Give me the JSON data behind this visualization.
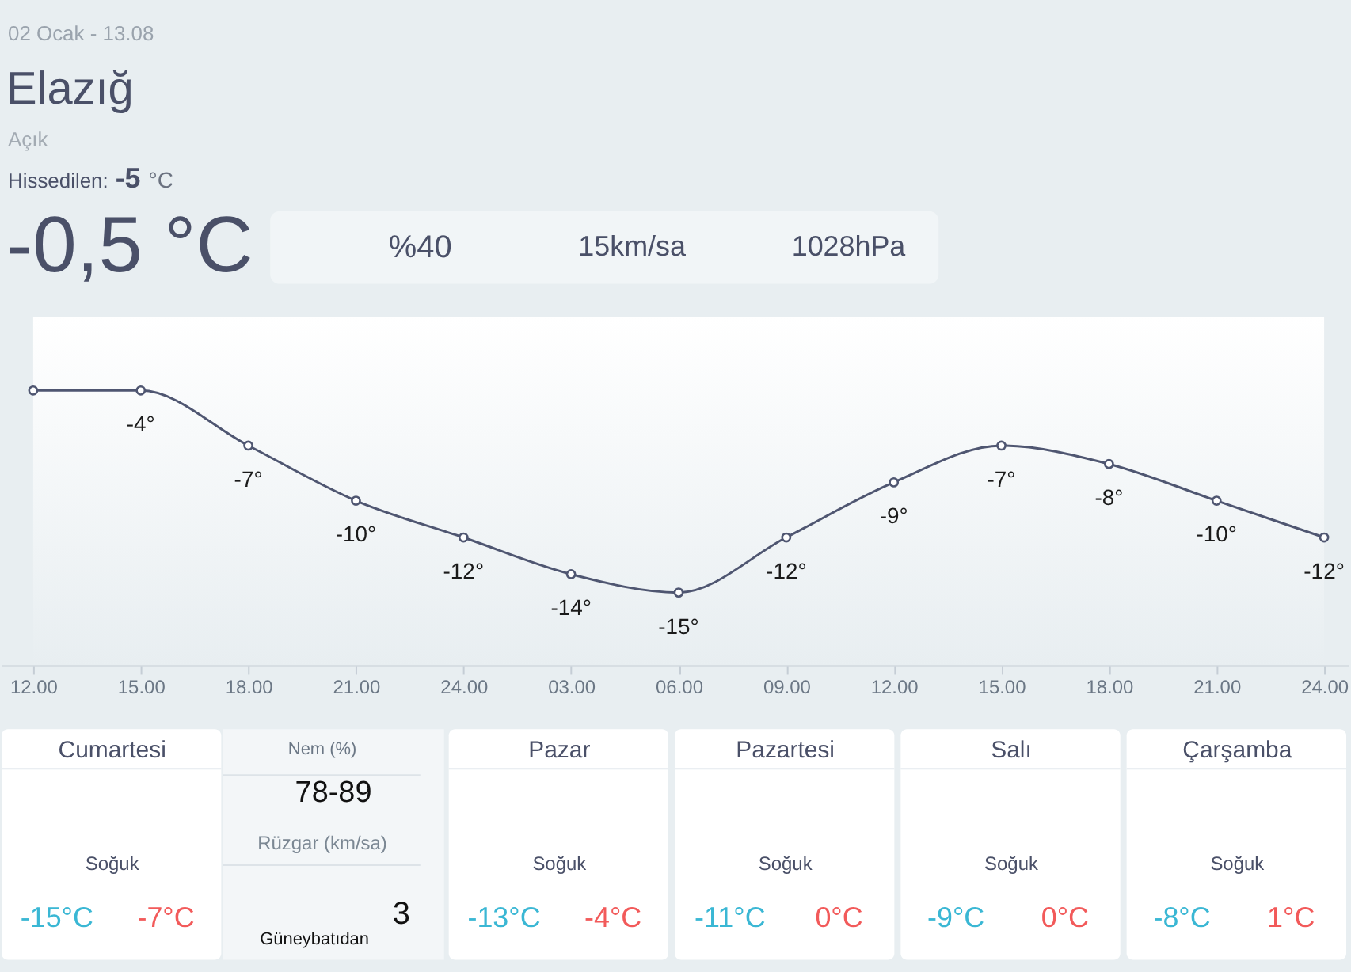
{
  "chart_data": [
    {
      "type": "other",
      "title": "Elazığ",
      "annotations": [
        "02 Ocak - 13.08",
        "Açık",
        "Hissedilen:",
        "-5",
        "°C",
        "-0,5 °C",
        "%40",
        "15km/sa",
        "1028hPa"
      ]
    },
    {
      "type": "line",
      "categories": [
        "12.00",
        "15.00",
        "18.00",
        "21.00",
        "24.00",
        "03.00",
        "06.00",
        "09.00",
        "12.00",
        "15.00",
        "18.00",
        "21.00",
        "24.00"
      ],
      "values": [
        -4,
        -4,
        -7,
        -10,
        -12,
        -14,
        -15,
        -12,
        -9,
        -7,
        -8,
        -10,
        -12
      ],
      "value_labels": [
        null,
        "-4°",
        "-7°",
        "-10°",
        "-12°",
        "-14°",
        "-15°",
        "-12°",
        "-9°",
        "-7°",
        "-8°",
        "-10°",
        "-12°"
      ],
      "color": "#4f5671",
      "marker": "circle",
      "ylim": [
        -19,
        0
      ],
      "tick_labels": "x"
    },
    {
      "type": "other",
      "categories": [
        "Cumartesi",
        "Pazar",
        "Pazartesi",
        "Salı",
        "Çarşamba"
      ],
      "annotations": [
        "Soğuk",
        "-15°C",
        "-7°C",
        "Soğuk",
        "-13°C",
        "-4°C",
        "Soğuk",
        "-11°C",
        "0°C",
        "Soğuk",
        "-9°C",
        "0°C",
        "Soğuk",
        "-8°C",
        "1°C",
        "Nem (%)",
        "78-89",
        "Rüzgar (km/sa)",
        "3",
        "Güneybatıdan"
      ]
    }
  ]
}
